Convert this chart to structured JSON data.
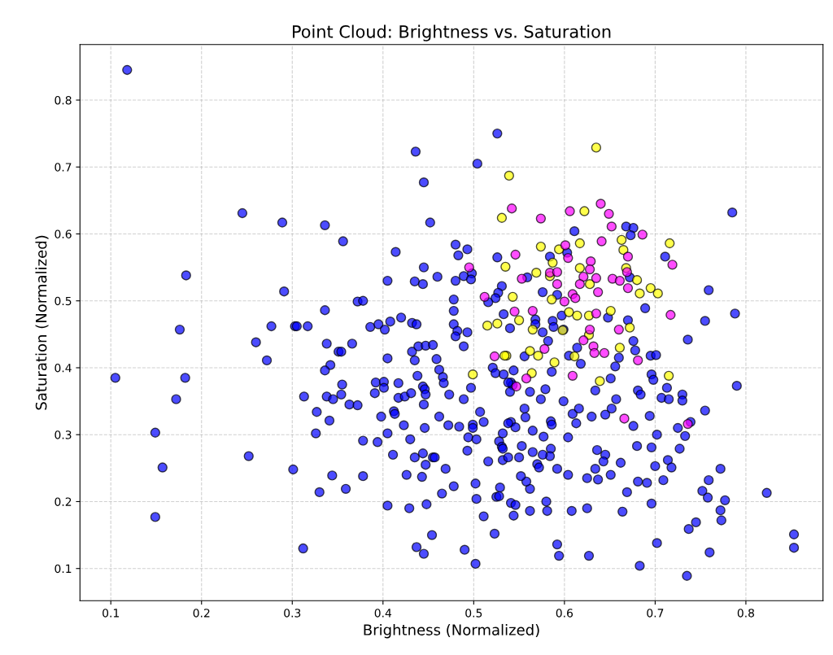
{
  "chart_data": {
    "type": "scatter",
    "title": "Point Cloud: Brightness vs. Saturation",
    "xlabel": "Brightness (Normalized)",
    "ylabel": "Saturation (Normalized)",
    "xlim": [
      0.066,
      0.885
    ],
    "ylim": [
      0.052,
      0.883
    ],
    "xticks": [
      0.1,
      0.2,
      0.3,
      0.4,
      0.5,
      0.6,
      0.7,
      0.8
    ],
    "yticks": [
      0.1,
      0.2,
      0.3,
      0.4,
      0.5,
      0.6,
      0.7,
      0.8
    ],
    "grid": true,
    "marker": "circle",
    "series": [
      {
        "color": "#0000ff",
        "x": [
          0.118,
          0.245,
          0.289,
          0.183,
          0.291,
          0.176,
          0.277,
          0.26,
          0.272,
          0.303,
          0.105,
          0.182,
          0.172,
          0.149,
          0.252,
          0.157,
          0.301,
          0.149,
          0.526,
          0.436,
          0.504,
          0.445,
          0.452,
          0.336,
          0.356,
          0.414,
          0.48,
          0.493,
          0.483,
          0.526,
          0.445,
          0.405,
          0.435,
          0.444,
          0.46,
          0.48,
          0.489,
          0.498,
          0.497,
          0.531,
          0.527,
          0.524,
          0.516,
          0.478,
          0.478,
          0.336,
          0.372,
          0.378,
          0.533,
          0.305,
          0.317,
          0.386,
          0.395,
          0.402,
          0.408,
          0.42,
          0.432,
          0.437,
          0.478,
          0.482,
          0.48,
          0.493,
          0.489,
          0.338,
          0.351,
          0.354,
          0.366,
          0.342,
          0.336,
          0.405,
          0.432,
          0.435,
          0.439,
          0.447,
          0.455,
          0.459,
          0.462,
          0.466,
          0.467,
          0.438,
          0.392,
          0.401,
          0.401,
          0.417,
          0.444,
          0.446,
          0.447,
          0.445,
          0.391,
          0.313,
          0.338,
          0.345,
          0.355,
          0.354,
          0.417,
          0.424,
          0.431,
          0.363,
          0.372,
          0.327,
          0.341,
          0.412,
          0.413,
          0.398,
          0.423,
          0.405,
          0.326,
          0.378,
          0.394,
          0.43,
          0.462,
          0.472,
          0.484,
          0.473,
          0.489,
          0.497,
          0.507,
          0.511,
          0.499,
          0.499,
          0.494,
          0.503,
          0.411,
          0.435,
          0.444,
          0.447,
          0.455,
          0.457,
          0.469,
          0.493,
          0.516,
          0.528,
          0.531,
          0.532,
          0.532,
          0.344,
          0.33,
          0.359,
          0.378,
          0.426,
          0.443,
          0.478,
          0.465,
          0.502,
          0.503,
          0.529,
          0.525,
          0.528,
          0.405,
          0.429,
          0.448,
          0.511,
          0.454,
          0.523,
          0.312,
          0.437,
          0.445,
          0.49,
          0.502,
          0.521,
          0.524,
          0.533,
          0.541,
          0.541,
          0.541,
          0.544,
          0.611,
          0.668,
          0.676,
          0.673,
          0.711,
          0.759,
          0.603,
          0.584,
          0.559,
          0.672,
          0.689,
          0.576,
          0.592,
          0.568,
          0.587,
          0.597,
          0.648,
          0.67,
          0.755,
          0.736,
          0.676,
          0.678,
          0.66,
          0.656,
          0.695,
          0.701,
          0.696,
          0.698,
          0.713,
          0.707,
          0.715,
          0.73,
          0.73,
          0.755,
          0.681,
          0.684,
          0.634,
          0.651,
          0.657,
          0.652,
          0.645,
          0.676,
          0.694,
          0.739,
          0.725,
          0.733,
          0.727,
          0.702,
          0.68,
          0.696,
          0.7,
          0.714,
          0.718,
          0.709,
          0.681,
          0.691,
          0.669,
          0.696,
          0.664,
          0.772,
          0.759,
          0.752,
          0.758,
          0.777,
          0.772,
          0.773,
          0.745,
          0.737,
          0.76,
          0.702,
          0.683,
          0.735,
          0.592,
          0.594,
          0.627,
          0.608,
          0.625,
          0.58,
          0.581,
          0.562,
          0.592,
          0.604,
          0.562,
          0.558,
          0.552,
          0.625,
          0.637,
          0.634,
          0.645,
          0.643,
          0.651,
          0.636,
          0.662,
          0.63,
          0.613,
          0.609,
          0.616,
          0.604,
          0.599,
          0.585,
          0.586,
          0.577,
          0.585,
          0.584,
          0.576,
          0.57,
          0.572,
          0.565,
          0.565,
          0.556,
          0.557,
          0.546,
          0.538,
          0.553,
          0.55,
          0.538,
          0.532,
          0.579,
          0.574,
          0.562,
          0.543,
          0.54,
          0.538,
          0.586,
          0.605,
          0.618,
          0.614,
          0.544,
          0.582,
          0.576,
          0.588,
          0.568,
          0.599,
          0.54,
          0.556,
          0.785,
          0.788,
          0.79,
          0.823,
          0.853,
          0.853,
          0.446,
          0.546
        ],
        "values": [
          0.845,
          0.631,
          0.617,
          0.538,
          0.514,
          0.457,
          0.462,
          0.438,
          0.411,
          0.462,
          0.385,
          0.385,
          0.353,
          0.303,
          0.268,
          0.251,
          0.248,
          0.177,
          0.75,
          0.723,
          0.705,
          0.677,
          0.617,
          0.613,
          0.589,
          0.573,
          0.584,
          0.577,
          0.568,
          0.565,
          0.55,
          0.53,
          0.529,
          0.525,
          0.536,
          0.53,
          0.537,
          0.541,
          0.532,
          0.522,
          0.512,
          0.504,
          0.498,
          0.502,
          0.485,
          0.486,
          0.499,
          0.5,
          0.48,
          0.462,
          0.462,
          0.461,
          0.465,
          0.457,
          0.469,
          0.475,
          0.467,
          0.465,
          0.465,
          0.455,
          0.447,
          0.453,
          0.432,
          0.436,
          0.424,
          0.424,
          0.436,
          0.404,
          0.396,
          0.414,
          0.424,
          0.411,
          0.432,
          0.433,
          0.434,
          0.413,
          0.397,
          0.386,
          0.377,
          0.388,
          0.378,
          0.379,
          0.37,
          0.377,
          0.372,
          0.368,
          0.36,
          0.345,
          0.362,
          0.357,
          0.357,
          0.353,
          0.375,
          0.36,
          0.355,
          0.357,
          0.362,
          0.345,
          0.344,
          0.334,
          0.321,
          0.335,
          0.331,
          0.327,
          0.314,
          0.302,
          0.302,
          0.291,
          0.289,
          0.293,
          0.327,
          0.314,
          0.312,
          0.36,
          0.353,
          0.37,
          0.334,
          0.319,
          0.315,
          0.31,
          0.296,
          0.293,
          0.27,
          0.266,
          0.272,
          0.255,
          0.266,
          0.266,
          0.249,
          0.276,
          0.26,
          0.29,
          0.282,
          0.302,
          0.262,
          0.239,
          0.214,
          0.219,
          0.238,
          0.24,
          0.237,
          0.223,
          0.212,
          0.227,
          0.204,
          0.221,
          0.207,
          0.208,
          0.194,
          0.19,
          0.196,
          0.178,
          0.15,
          0.152,
          0.13,
          0.132,
          0.122,
          0.128,
          0.107,
          0.4,
          0.392,
          0.39,
          0.378,
          0.319,
          0.198,
          0.179,
          0.604,
          0.611,
          0.609,
          0.598,
          0.566,
          0.516,
          0.572,
          0.566,
          0.535,
          0.535,
          0.489,
          0.513,
          0.509,
          0.472,
          0.47,
          0.478,
          0.475,
          0.471,
          0.47,
          0.442,
          0.44,
          0.426,
          0.415,
          0.402,
          0.418,
          0.419,
          0.39,
          0.382,
          0.37,
          0.355,
          0.353,
          0.36,
          0.351,
          0.336,
          0.366,
          0.36,
          0.366,
          0.384,
          0.353,
          0.339,
          0.33,
          0.313,
          0.328,
          0.319,
          0.31,
          0.298,
          0.279,
          0.3,
          0.283,
          0.281,
          0.253,
          0.262,
          0.251,
          0.232,
          0.23,
          0.228,
          0.214,
          0.197,
          0.185,
          0.249,
          0.232,
          0.216,
          0.206,
          0.202,
          0.187,
          0.172,
          0.169,
          0.159,
          0.124,
          0.138,
          0.104,
          0.089,
          0.136,
          0.119,
          0.119,
          0.186,
          0.19,
          0.2,
          0.186,
          0.186,
          0.249,
          0.24,
          0.219,
          0.23,
          0.238,
          0.235,
          0.233,
          0.249,
          0.27,
          0.26,
          0.24,
          0.277,
          0.258,
          0.327,
          0.317,
          0.331,
          0.339,
          0.296,
          0.35,
          0.32,
          0.315,
          0.297,
          0.279,
          0.268,
          0.27,
          0.256,
          0.251,
          0.274,
          0.306,
          0.339,
          0.326,
          0.311,
          0.317,
          0.283,
          0.266,
          0.266,
          0.279,
          0.368,
          0.353,
          0.364,
          0.374,
          0.364,
          0.378,
          0.394,
          0.418,
          0.406,
          0.43,
          0.396,
          0.44,
          0.453,
          0.461,
          0.465,
          0.457,
          0.459,
          0.417,
          0.632,
          0.481,
          0.373,
          0.213,
          0.151,
          0.131,
          0.31,
          0.195
        ]
      },
      {
        "color": "#ffff00",
        "x": [
          0.635,
          0.539,
          0.531,
          0.622,
          0.716,
          0.663,
          0.665,
          0.668,
          0.68,
          0.683,
          0.695,
          0.703,
          0.617,
          0.594,
          0.574,
          0.587,
          0.535,
          0.569,
          0.584,
          0.586,
          0.617,
          0.628,
          0.543,
          0.55,
          0.605,
          0.614,
          0.627,
          0.651,
          0.515,
          0.526,
          0.536,
          0.499,
          0.672,
          0.627,
          0.661,
          0.715,
          0.639,
          0.589,
          0.564,
          0.562,
          0.571,
          0.534,
          0.611,
          0.565,
          0.598
        ],
        "values": [
          0.729,
          0.687,
          0.624,
          0.634,
          0.586,
          0.591,
          0.576,
          0.549,
          0.531,
          0.511,
          0.519,
          0.511,
          0.586,
          0.577,
          0.581,
          0.557,
          0.551,
          0.542,
          0.537,
          0.502,
          0.549,
          0.525,
          0.506,
          0.471,
          0.483,
          0.478,
          0.478,
          0.485,
          0.463,
          0.466,
          0.418,
          0.39,
          0.46,
          0.449,
          0.43,
          0.388,
          0.38,
          0.408,
          0.392,
          0.425,
          0.418,
          0.418,
          0.417,
          0.457,
          0.456
        ]
      },
      {
        "color": "#ff00ff",
        "x": [
          0.542,
          0.574,
          0.606,
          0.64,
          0.649,
          0.652,
          0.686,
          0.719,
          0.67,
          0.669,
          0.67,
          0.641,
          0.601,
          0.604,
          0.546,
          0.553,
          0.584,
          0.592,
          0.592,
          0.6,
          0.609,
          0.612,
          0.629,
          0.628,
          0.621,
          0.617,
          0.635,
          0.637,
          0.653,
          0.661,
          0.545,
          0.565,
          0.635,
          0.717,
          0.495,
          0.512,
          0.523,
          0.66,
          0.628,
          0.621,
          0.632,
          0.633,
          0.644,
          0.681,
          0.666,
          0.736,
          0.609,
          0.558,
          0.547,
          0.578
        ],
        "values": [
          0.638,
          0.623,
          0.634,
          0.645,
          0.63,
          0.611,
          0.599,
          0.554,
          0.566,
          0.543,
          0.519,
          0.589,
          0.583,
          0.564,
          0.569,
          0.533,
          0.542,
          0.543,
          0.525,
          0.499,
          0.51,
          0.504,
          0.559,
          0.547,
          0.536,
          0.525,
          0.534,
          0.513,
          0.533,
          0.53,
          0.484,
          0.485,
          0.481,
          0.479,
          0.55,
          0.506,
          0.417,
          0.457,
          0.457,
          0.441,
          0.432,
          0.422,
          0.422,
          0.411,
          0.324,
          0.316,
          0.388,
          0.384,
          0.372,
          0.428
        ]
      }
    ]
  }
}
